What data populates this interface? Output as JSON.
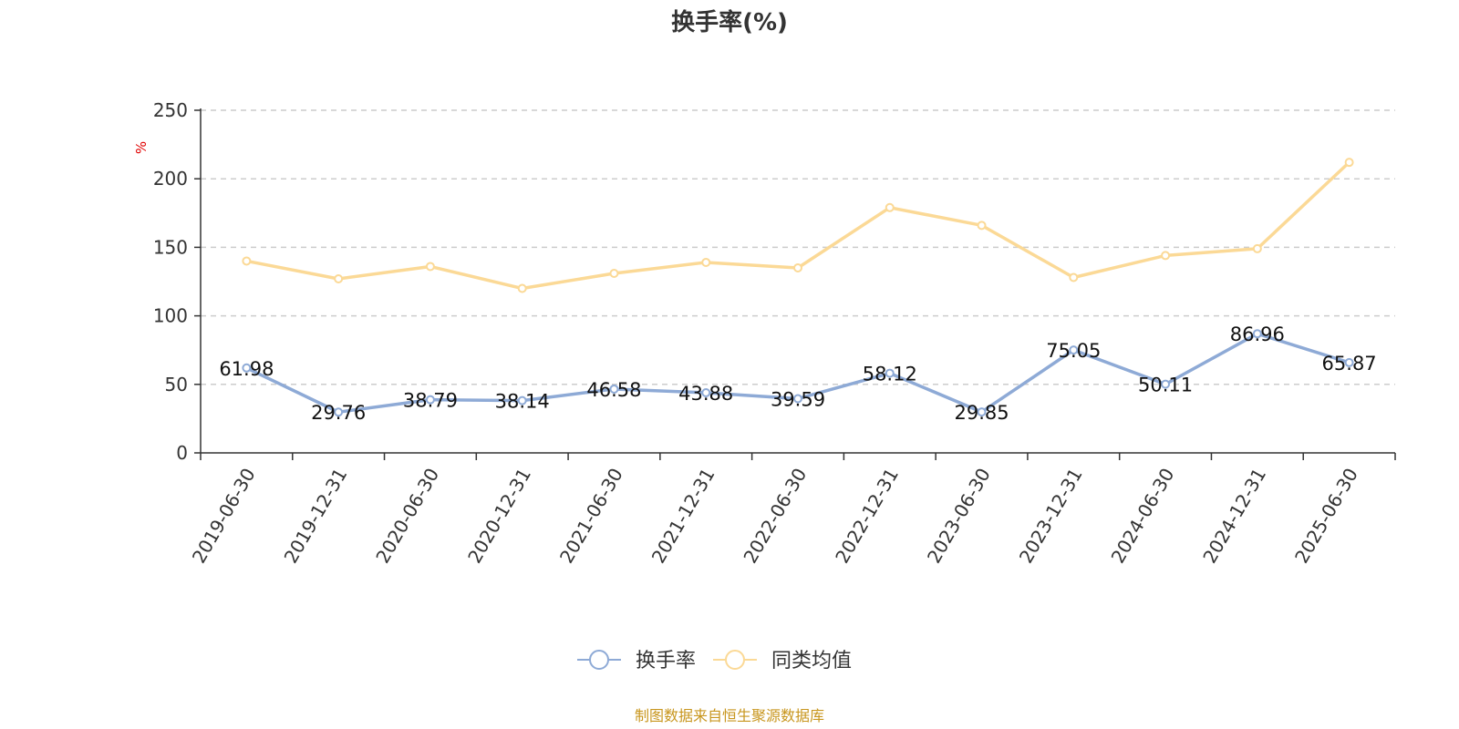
{
  "chart_data": {
    "type": "line",
    "title": "换手率(%)",
    "ylabel": "%",
    "ylim": [
      0,
      250
    ],
    "yticks": [
      0,
      50,
      100,
      150,
      200,
      250
    ],
    "grid": true,
    "legend_position": "bottom",
    "categories": [
      "2019-06-30",
      "2019-12-31",
      "2020-06-30",
      "2020-12-31",
      "2021-06-30",
      "2021-12-31",
      "2022-06-30",
      "2022-12-31",
      "2023-06-30",
      "2023-12-31",
      "2024-06-30",
      "2024-12-31",
      "2025-06-30"
    ],
    "series": [
      {
        "name": "换手率",
        "color": "#8eaad6",
        "show_labels": true,
        "values": [
          61.98,
          29.76,
          38.79,
          38.14,
          46.58,
          43.88,
          39.59,
          58.12,
          29.85,
          75.05,
          50.11,
          86.96,
          65.87
        ]
      },
      {
        "name": "同类均值",
        "color": "#fbd996",
        "show_labels": false,
        "values": [
          140,
          127,
          136,
          120,
          131,
          139,
          135,
          179,
          166,
          128,
          144,
          149,
          212
        ]
      }
    ]
  },
  "source": "制图数据来自恒生聚源数据库"
}
